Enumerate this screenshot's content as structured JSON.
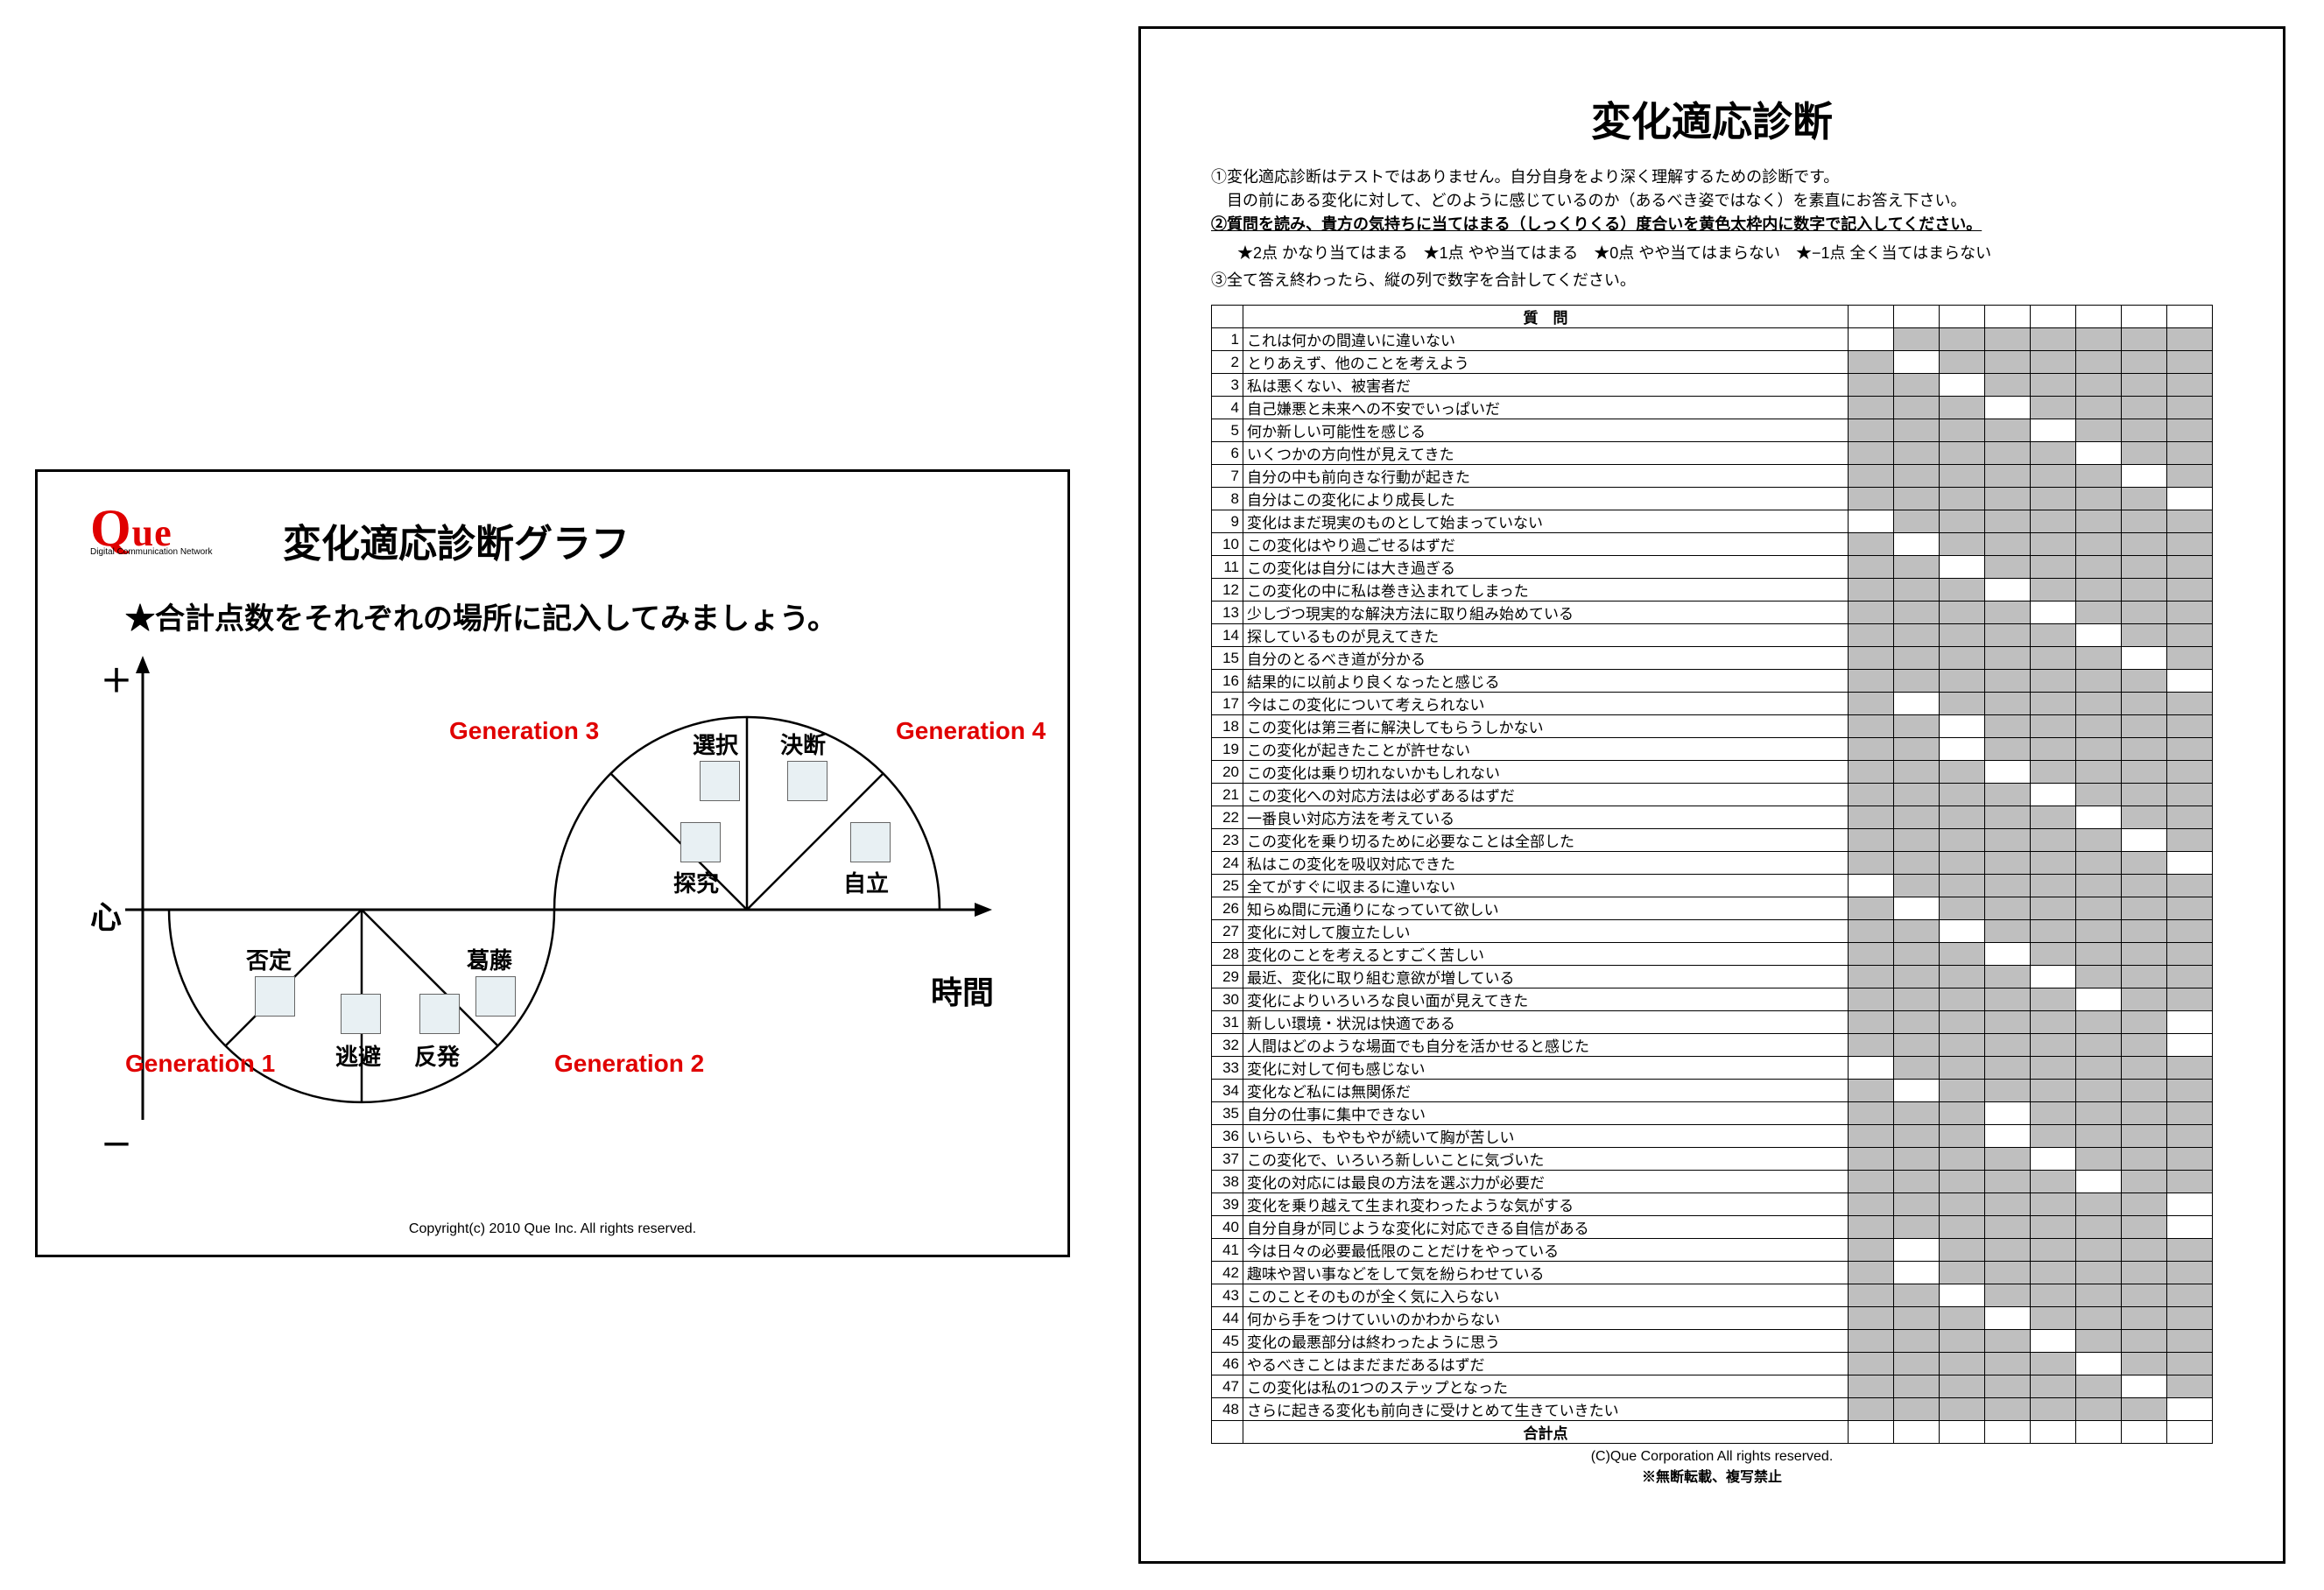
{
  "left": {
    "logo": "Que",
    "logo_sub": "Digital Communication Network",
    "title": "変化適応診断グラフ",
    "instruction": "★合計点数をそれぞれの場所に記入してみましょう。",
    "axis": {
      "plus": "＋",
      "minus": "－",
      "heart": "心",
      "time": "時間"
    },
    "generations": {
      "g1": "Generation 1",
      "g2": "Generation 2",
      "g3": "Generation 3",
      "g4": "Generation 4"
    },
    "segments": {
      "s1": "否定",
      "s2": "逃避",
      "s3": "反発",
      "s4": "葛藤",
      "s5": "探究",
      "s6": "選択",
      "s7": "決断",
      "s8": "自立"
    },
    "copyright": "Copyright(c) 2010 Que Inc. All rights reserved.",
    "colors": {
      "accent": "#e00000",
      "box_fill": "#e8f0f3",
      "stroke": "#000000"
    }
  },
  "right": {
    "title": "変化適応診断",
    "intro1": "①変化適応診断はテストではありません。自分自身をより深く理解するための診断です。",
    "intro2": "　目の前にある変化に対して、どのように感じているのか（あるべき姿ではなく）を素直にお答え下さい。",
    "intro3": "②質問を読み、貴方の気持ちに当てはまる（しっくりくる）度合いを黄色太枠内に数字で記入してください。",
    "scale": "★2点 かなり当てはまる　★1点 やや当てはまる　★0点 やや当てはまらない　★−1点 全く当てはまらない",
    "intro4": "③全て答え終わったら、縦の列で数字を合計してください。",
    "header": "質　問",
    "total_label": "合計点",
    "copyright": "(C)Que Corporation All rights reserved.",
    "no_reproduce": "※無断転載、複写禁止",
    "columns": 8,
    "grey_color": "#bfbfbf",
    "questions": [
      {
        "n": 1,
        "t": "これは何かの間違いに違いない",
        "open": [
          0
        ]
      },
      {
        "n": 2,
        "t": "とりあえず、他のことを考えよう",
        "open": [
          1
        ]
      },
      {
        "n": 3,
        "t": "私は悪くない、被害者だ",
        "open": [
          2
        ]
      },
      {
        "n": 4,
        "t": "自己嫌悪と未来への不安でいっぱいだ",
        "open": [
          3
        ]
      },
      {
        "n": 5,
        "t": "何か新しい可能性を感じる",
        "open": [
          4
        ]
      },
      {
        "n": 6,
        "t": "いくつかの方向性が見えてきた",
        "open": [
          5
        ]
      },
      {
        "n": 7,
        "t": "自分の中も前向きな行動が起きた",
        "open": [
          6
        ]
      },
      {
        "n": 8,
        "t": "自分はこの変化により成長した",
        "open": [
          7
        ]
      },
      {
        "n": 9,
        "t": "変化はまだ現実のものとして始まっていない",
        "open": [
          0
        ]
      },
      {
        "n": 10,
        "t": "この変化はやり過ごせるはずだ",
        "open": [
          1
        ]
      },
      {
        "n": 11,
        "t": "この変化は自分には大き過ぎる",
        "open": [
          2
        ]
      },
      {
        "n": 12,
        "t": "この変化の中に私は巻き込まれてしまった",
        "open": [
          3
        ]
      },
      {
        "n": 13,
        "t": "少しづつ現実的な解決方法に取り組み始めている",
        "open": [
          4
        ]
      },
      {
        "n": 14,
        "t": "探しているものが見えてきた",
        "open": [
          5
        ]
      },
      {
        "n": 15,
        "t": "自分のとるべき道が分かる",
        "open": [
          6
        ]
      },
      {
        "n": 16,
        "t": "結果的に以前より良くなったと感じる",
        "open": [
          7
        ]
      },
      {
        "n": 17,
        "t": "今はこの変化について考えられない",
        "open": [
          1
        ]
      },
      {
        "n": 18,
        "t": "この変化は第三者に解決してもらうしかない",
        "open": [
          2
        ]
      },
      {
        "n": 19,
        "t": "この変化が起きたことが許せない",
        "open": [
          2
        ]
      },
      {
        "n": 20,
        "t": "この変化は乗り切れないかもしれない",
        "open": [
          3
        ]
      },
      {
        "n": 21,
        "t": "この変化への対応方法は必ずあるはずだ",
        "open": [
          4
        ]
      },
      {
        "n": 22,
        "t": "一番良い対応方法を考えている",
        "open": [
          5
        ]
      },
      {
        "n": 23,
        "t": "この変化を乗り切るために必要なことは全部した",
        "open": [
          6
        ]
      },
      {
        "n": 24,
        "t": "私はこの変化を吸収対応できた",
        "open": [
          7
        ]
      },
      {
        "n": 25,
        "t": "全てがすぐに収まるに違いない",
        "open": [
          0
        ]
      },
      {
        "n": 26,
        "t": "知らぬ間に元通りになっていて欲しい",
        "open": [
          1
        ]
      },
      {
        "n": 27,
        "t": "変化に対して腹立たしい",
        "open": [
          2
        ]
      },
      {
        "n": 28,
        "t": "変化のことを考えるとすごく苦しい",
        "open": [
          3
        ]
      },
      {
        "n": 29,
        "t": "最近、変化に取り組む意欲が増している",
        "open": [
          4
        ]
      },
      {
        "n": 30,
        "t": "変化によりいろいろな良い面が見えてきた",
        "open": [
          5
        ]
      },
      {
        "n": 31,
        "t": "新しい環境・状況は快適である",
        "open": [
          7
        ]
      },
      {
        "n": 32,
        "t": "人間はどのような場面でも自分を活かせると感じた",
        "open": [
          7
        ]
      },
      {
        "n": 33,
        "t": "変化に対して何も感じない",
        "open": [
          0
        ]
      },
      {
        "n": 34,
        "t": "変化など私には無関係だ",
        "open": [
          1
        ]
      },
      {
        "n": 35,
        "t": "自分の仕事に集中できない",
        "open": [
          3
        ]
      },
      {
        "n": 36,
        "t": "いらいら、もやもやが続いて胸が苦しい",
        "open": [
          3
        ]
      },
      {
        "n": 37,
        "t": "この変化で、いろいろ新しいことに気づいた",
        "open": [
          4
        ]
      },
      {
        "n": 38,
        "t": "変化の対応には最良の方法を選ぶ力が必要だ",
        "open": [
          5
        ]
      },
      {
        "n": 39,
        "t": "変化を乗り越えて生まれ変わったような気がする",
        "open": [
          7
        ]
      },
      {
        "n": 40,
        "t": "自分自身が同じような変化に対応できる自信がある",
        "open": [
          7
        ]
      },
      {
        "n": 41,
        "t": "今は日々の必要最低限のことだけをやっている",
        "open": [
          1
        ]
      },
      {
        "n": 42,
        "t": "趣味や習い事などをして気を紛らわせている",
        "open": [
          1
        ]
      },
      {
        "n": 43,
        "t": "このことそのものが全く気に入らない",
        "open": [
          2
        ]
      },
      {
        "n": 44,
        "t": "何から手をつけていいのかわからない",
        "open": [
          3
        ]
      },
      {
        "n": 45,
        "t": "変化の最悪部分は終わったように思う",
        "open": [
          4
        ]
      },
      {
        "n": 46,
        "t": "やるべきことはまだまだあるはずだ",
        "open": [
          5
        ]
      },
      {
        "n": 47,
        "t": "この変化は私の1つのステップとなった",
        "open": [
          6
        ]
      },
      {
        "n": 48,
        "t": "さらに起きる変化も前向きに受けとめて生きていきたい",
        "open": [
          7
        ]
      }
    ]
  }
}
